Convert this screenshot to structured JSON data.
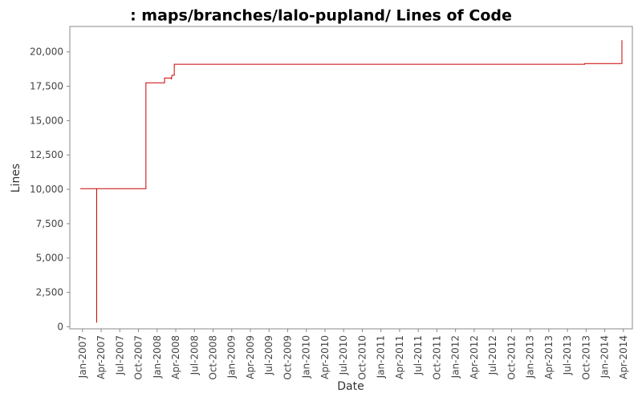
{
  "chart_data": {
    "type": "line",
    "title": ": maps/branches/lalo-pupland/ Lines of Code",
    "x_label": "Date",
    "y_label": "Lines",
    "series": [
      {
        "name": "Lines",
        "color": "#cc0000",
        "x": [
          2006.97,
          2007.19,
          2007.19,
          2007.19,
          2007.85,
          2007.85,
          2008.1,
          2008.1,
          2008.19,
          2008.19,
          2008.2,
          2008.23,
          2008.23,
          2013.73,
          2013.73,
          2014.23,
          2014.23
        ],
        "values": [
          10050,
          10050,
          300,
          10050,
          10050,
          17750,
          17750,
          18100,
          18100,
          18000,
          18300,
          18300,
          19100,
          19100,
          19150,
          19150,
          20850
        ]
      }
    ],
    "xlim": [
      2006.83,
      2014.37
    ],
    "xticks": [
      {
        "value": 2007.0,
        "label": "Jan-2007"
      },
      {
        "value": 2007.25,
        "label": "Apr-2007"
      },
      {
        "value": 2007.5,
        "label": "Jul-2007"
      },
      {
        "value": 2007.75,
        "label": "Oct-2007"
      },
      {
        "value": 2008.0,
        "label": "Jan-2008"
      },
      {
        "value": 2008.25,
        "label": "Apr-2008"
      },
      {
        "value": 2008.5,
        "label": "Jul-2008"
      },
      {
        "value": 2008.75,
        "label": "Oct-2008"
      },
      {
        "value": 2009.0,
        "label": "Jan-2009"
      },
      {
        "value": 2009.25,
        "label": "Apr-2009"
      },
      {
        "value": 2009.5,
        "label": "Jul-2009"
      },
      {
        "value": 2009.75,
        "label": "Oct-2009"
      },
      {
        "value": 2010.0,
        "label": "Jan-2010"
      },
      {
        "value": 2010.25,
        "label": "Apr-2010"
      },
      {
        "value": 2010.5,
        "label": "Jul-2010"
      },
      {
        "value": 2010.75,
        "label": "Oct-2010"
      },
      {
        "value": 2011.0,
        "label": "Jan-2011"
      },
      {
        "value": 2011.25,
        "label": "Apr-2011"
      },
      {
        "value": 2011.5,
        "label": "Jul-2011"
      },
      {
        "value": 2011.75,
        "label": "Oct-2011"
      },
      {
        "value": 2012.0,
        "label": "Jan-2012"
      },
      {
        "value": 2012.25,
        "label": "Apr-2012"
      },
      {
        "value": 2012.5,
        "label": "Jul-2012"
      },
      {
        "value": 2012.75,
        "label": "Oct-2012"
      },
      {
        "value": 2013.0,
        "label": "Jan-2013"
      },
      {
        "value": 2013.25,
        "label": "Apr-2013"
      },
      {
        "value": 2013.5,
        "label": "Jul-2013"
      },
      {
        "value": 2013.75,
        "label": "Oct-2013"
      },
      {
        "value": 2014.0,
        "label": "Jan-2014"
      },
      {
        "value": 2014.25,
        "label": "Apr-2014"
      }
    ],
    "ylim": [
      -150,
      21850
    ],
    "yticks": [
      0,
      {
        "value": 2500,
        "label": "2,500"
      },
      {
        "value": 5000,
        "label": "5,000"
      },
      {
        "value": 7500,
        "label": "7,500"
      },
      {
        "value": 10000,
        "label": "10,000"
      },
      {
        "value": 12500,
        "label": "12,500"
      },
      {
        "value": 15000,
        "label": "15,000"
      },
      {
        "value": 17500,
        "label": "17,500"
      },
      {
        "value": 20000,
        "label": "20,000"
      }
    ],
    "grid": false
  }
}
